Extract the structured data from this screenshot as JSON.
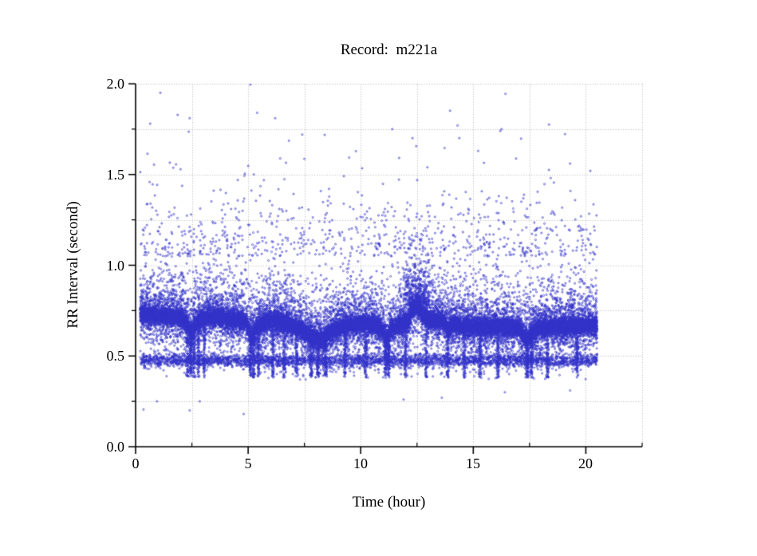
{
  "window": {
    "background": "#ffffff"
  },
  "chart_data": {
    "type": "scatter",
    "title": "Record:  m221a",
    "xlabel": "Time (hour)",
    "ylabel": "RR Interval (second)",
    "xlim": [
      0,
      22.5
    ],
    "ylim": [
      0,
      2.0
    ],
    "x_major_ticks": [
      0,
      5,
      10,
      15,
      20
    ],
    "x_major_tick_labels": [
      "0",
      "5",
      "10",
      "15",
      "20"
    ],
    "x_minor_ticks": [
      2.5,
      7.5,
      12.5,
      17.5,
      22.5
    ],
    "y_major_ticks": [
      0,
      0.5,
      1.0,
      1.5,
      2.0
    ],
    "y_major_tick_labels": [
      "0.0",
      "0.5",
      "1.0",
      "1.5",
      "2.0"
    ],
    "y_minor_ticks": [
      0.25,
      0.75,
      1.25,
      1.75
    ],
    "grid": {
      "show": true,
      "style": "dotted",
      "color": "#b2b2b2",
      "x_step": 2.5,
      "y_step": 0.25
    },
    "axis_color": "#000000",
    "marker": {
      "shape": "open-circle",
      "radius_px": 1.05,
      "color": "rgba(50,50,200,0.82)"
    },
    "legend": null,
    "data_x_range": [
      0.2,
      20.5
    ],
    "description": "RR-interval tachogram: dense main band meandering around 0.65-0.75 s with transient downward dips, a thin secondary band near 0.475 s, diffuse scatter 0.37-1.06 s, sparse outliers up to 2.0 s and a few below 0.3 s; data span roughly 0.2-20.5 h.",
    "synthesis": {
      "seed": 1337,
      "band_path": [
        [
          0.2,
          0.735
        ],
        [
          0.8,
          0.725
        ],
        [
          1.4,
          0.72
        ],
        [
          2.0,
          0.71
        ],
        [
          2.3,
          0.68
        ],
        [
          2.45,
          0.625
        ],
        [
          2.6,
          0.67
        ],
        [
          2.8,
          0.7
        ],
        [
          3.2,
          0.715
        ],
        [
          3.8,
          0.71
        ],
        [
          4.4,
          0.7
        ],
        [
          4.9,
          0.695
        ],
        [
          5.15,
          0.6
        ],
        [
          5.35,
          0.655
        ],
        [
          5.6,
          0.68
        ],
        [
          6.0,
          0.695
        ],
        [
          6.5,
          0.69
        ],
        [
          7.0,
          0.67
        ],
        [
          7.5,
          0.635
        ],
        [
          7.9,
          0.6
        ],
        [
          8.3,
          0.585
        ],
        [
          8.6,
          0.625
        ],
        [
          9.0,
          0.655
        ],
        [
          9.5,
          0.67
        ],
        [
          10.0,
          0.675
        ],
        [
          10.5,
          0.68
        ],
        [
          10.9,
          0.655
        ],
        [
          11.15,
          0.6
        ],
        [
          11.4,
          0.655
        ],
        [
          11.8,
          0.675
        ],
        [
          12.1,
          0.7
        ],
        [
          12.35,
          0.76
        ],
        [
          12.55,
          0.78
        ],
        [
          12.75,
          0.73
        ],
        [
          13.0,
          0.7
        ],
        [
          13.3,
          0.695
        ],
        [
          13.6,
          0.7
        ],
        [
          13.9,
          0.645
        ],
        [
          14.1,
          0.675
        ],
        [
          14.5,
          0.665
        ],
        [
          15.0,
          0.66
        ],
        [
          15.5,
          0.66
        ],
        [
          16.0,
          0.66
        ],
        [
          16.5,
          0.66
        ],
        [
          17.0,
          0.655
        ],
        [
          17.4,
          0.585
        ],
        [
          17.6,
          0.63
        ],
        [
          17.9,
          0.655
        ],
        [
          18.4,
          0.66
        ],
        [
          19.0,
          0.66
        ],
        [
          19.5,
          0.665
        ],
        [
          20.0,
          0.67
        ],
        [
          20.5,
          0.665
        ]
      ],
      "band": {
        "count": 15000,
        "sigma": 0.022
      },
      "above_diffuse": {
        "count": 5200,
        "offset": 0.02,
        "expo_scale": 0.085,
        "max": 1.06
      },
      "below_diffuse": {
        "count": 4200,
        "offset": 0.02,
        "expo_scale": 0.062,
        "min": 0.37
      },
      "secondary_band": {
        "count": 3000,
        "center": 0.475,
        "sigma": 0.018
      },
      "upper_sparse": {
        "count": 780,
        "base": 1.05,
        "expo_scale": 0.15,
        "max": 1.97
      },
      "cluster_12h": {
        "count": 320,
        "x_min": 11.9,
        "x_max": 13.05,
        "base": 0.78,
        "expo_scale": 0.13,
        "max": 1.35
      },
      "spikes": {
        "hours": [
          2.3,
          2.45,
          2.6,
          2.8,
          3.05,
          5.1,
          5.25,
          5.45,
          6.1,
          6.6,
          7.15,
          7.8,
          8.1,
          8.45,
          9.3,
          10.2,
          11.1,
          11.25,
          12.0,
          12.9,
          13.85,
          14.6,
          15.3,
          16.1,
          17.4,
          17.6,
          18.3,
          19.6
        ],
        "count_each": 80,
        "sigma_x": 0.03,
        "y_min": 0.38
      },
      "top_outliers": [
        [
          5.1,
          1.995
        ],
        [
          1.1,
          1.95
        ],
        [
          5.4,
          1.84
        ],
        [
          2.4,
          1.81
        ],
        [
          6.2,
          1.81
        ],
        [
          0.65,
          1.78
        ],
        [
          14.3,
          1.77
        ],
        [
          11.4,
          1.75
        ],
        [
          16.2,
          1.74
        ],
        [
          7.4,
          1.72
        ],
        [
          12.3,
          1.7
        ],
        [
          19.3,
          1.56
        ],
        [
          20.2,
          1.52
        ]
      ],
      "low_outliers": [
        [
          0.35,
          0.205
        ],
        [
          2.4,
          0.2
        ],
        [
          2.85,
          0.25
        ],
        [
          4.8,
          0.18
        ],
        [
          0.95,
          0.25
        ],
        [
          11.9,
          0.26
        ],
        [
          13.6,
          0.27
        ],
        [
          16.4,
          0.3
        ],
        [
          19.3,
          0.31
        ]
      ]
    }
  }
}
